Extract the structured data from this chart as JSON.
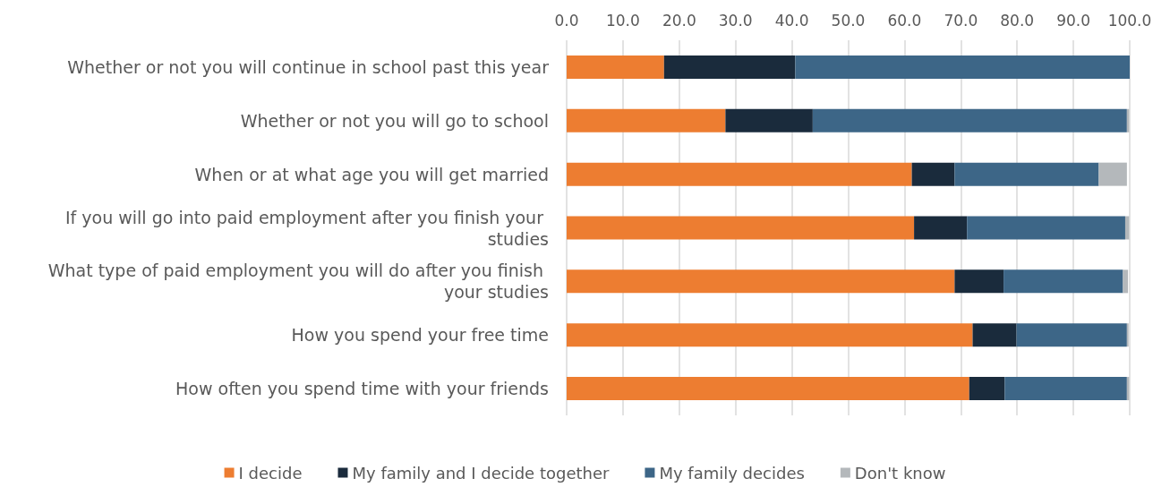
{
  "chart_data": {
    "type": "bar",
    "orientation": "horizontal",
    "stacked": true,
    "categories": [
      "Whether or not you will continue in school past this year",
      "Whether or not you will go to school",
      "When or at what age you will get married",
      "If you will go into paid employment after you finish your studies",
      "What type of paid employment you will do after you finish your studies",
      "How you spend your free time",
      "How often you spend time with your friends"
    ],
    "series": [
      {
        "name": "I decide",
        "color": "#ed7d31",
        "values": [
          17.3,
          28.2,
          61.3,
          61.7,
          68.9,
          72.1,
          71.5
        ]
      },
      {
        "name": "My family and I decide together",
        "color": "#1a2b3c",
        "values": [
          23.3,
          15.5,
          7.6,
          9.4,
          8.7,
          7.8,
          6.3
        ]
      },
      {
        "name": "My family decides",
        "color": "#3d6687",
        "values": [
          59.4,
          55.8,
          25.6,
          28.1,
          21.2,
          19.6,
          21.7
        ]
      },
      {
        "name": "Don't know",
        "color": "#b4b8bb",
        "values": [
          0,
          0.4,
          5.0,
          0.7,
          0.9,
          0.3,
          0.4
        ]
      }
    ],
    "xlim": [
      0,
      100
    ],
    "xticks": [
      {
        "value": 0,
        "label": "0.0"
      },
      {
        "value": 10,
        "label": "10.0"
      },
      {
        "value": 20,
        "label": "20.0"
      },
      {
        "value": 30,
        "label": "30.0"
      },
      {
        "value": 40,
        "label": "40.0"
      },
      {
        "value": 50,
        "label": "50.0"
      },
      {
        "value": 60,
        "label": "60.0"
      },
      {
        "value": 70,
        "label": "70.0"
      },
      {
        "value": 80,
        "label": "80.0"
      },
      {
        "value": 90,
        "label": "90.0"
      },
      {
        "value": 100,
        "label": "100.0"
      }
    ],
    "grid": "x",
    "legend": "bottom"
  }
}
